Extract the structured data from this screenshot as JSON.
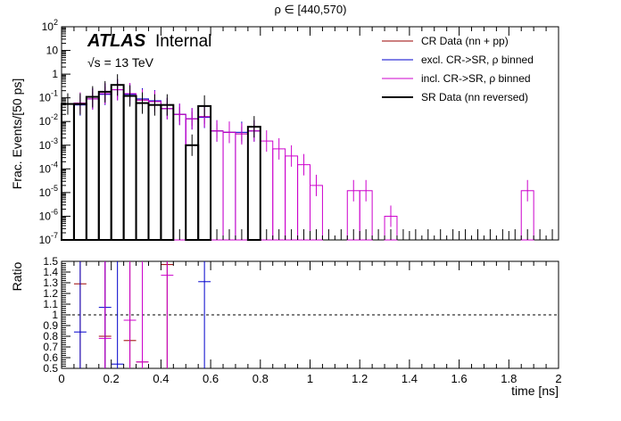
{
  "chart_data": [
    {
      "type": "line",
      "title": "ρ ∈ [440,570)",
      "ylabel": "Frac. Events/[50 ps]",
      "yscale": "log",
      "ylim": [
        1e-07,
        100
      ],
      "xlim": [
        0,
        2
      ],
      "y_ticks": [
        "10^-7",
        "10^-6",
        "10^-5",
        "10^-4",
        "10^-3",
        "10^-2",
        "10^-1",
        "1",
        "10",
        "10^2"
      ],
      "atlas_label": "ATLAS",
      "atlas_suffix": "Internal",
      "energy_label": "√s = 13 TeV",
      "legend_position": "top-right",
      "series": [
        {
          "name": "CR Data (nn + pp)",
          "color": "#990000",
          "style": "errorbars",
          "x": [
            0.075,
            0.125,
            0.175,
            0.225,
            0.275,
            0.325,
            0.375,
            0.425,
            0.475,
            0.525,
            0.575,
            0.625,
            0.675,
            0.725,
            0.775
          ],
          "values": [
            0.06,
            0.09,
            0.15,
            0.22,
            0.15,
            0.08,
            0.07,
            0.035,
            0.02,
            0.013,
            0.016,
            0.004,
            0.0035,
            0.003,
            0.004
          ]
        },
        {
          "name": "excl. CR->SR, ρ binned",
          "color": "#0000cc",
          "style": "histogram",
          "x": [
            0.075,
            0.125,
            0.175,
            0.225,
            0.275,
            0.325,
            0.375,
            0.425,
            0.475,
            0.525,
            0.575,
            0.625,
            0.675,
            0.725,
            0.775
          ],
          "values": [
            0.05,
            0.09,
            0.14,
            0.22,
            0.14,
            0.09,
            0.075,
            0.035,
            0.02,
            0.013,
            0.015,
            0.004,
            0.0035,
            0.0035,
            0.004
          ]
        },
        {
          "name": "incl. CR->SR, ρ binned",
          "color": "#cc00cc",
          "style": "histogram",
          "x": [
            0.075,
            0.125,
            0.175,
            0.225,
            0.275,
            0.325,
            0.375,
            0.425,
            0.475,
            0.525,
            0.575,
            0.625,
            0.675,
            0.725,
            0.775,
            0.825,
            0.875,
            0.925,
            0.975,
            1.025,
            1.175,
            1.225,
            1.325,
            1.875
          ],
          "values": [
            0.06,
            0.09,
            0.15,
            0.22,
            0.15,
            0.08,
            0.07,
            0.035,
            0.02,
            0.013,
            0.016,
            0.004,
            0.0035,
            0.003,
            0.004,
            0.0015,
            0.0007,
            0.00035,
            0.00015,
            2e-05,
            1.2e-05,
            1.2e-05,
            1e-06,
            1.2e-05
          ]
        },
        {
          "name": "SR Data (nn reversed)",
          "color": "#000000",
          "style": "histogram",
          "x": [
            0.025,
            0.075,
            0.125,
            0.175,
            0.225,
            0.275,
            0.325,
            0.375,
            0.425,
            0.475,
            0.525,
            0.575,
            0.625,
            0.675,
            0.725,
            0.775,
            0.825,
            0.875,
            0.925,
            0.975,
            1.025,
            1.075,
            1.125,
            1.175,
            1.225,
            1.275,
            1.325,
            1.375,
            1.425,
            1.475,
            1.525,
            1.575,
            1.625,
            1.675,
            1.725,
            1.775,
            1.825,
            1.875,
            1.925,
            1.975
          ],
          "values": [
            0.055,
            0.055,
            0.11,
            0.18,
            0.35,
            0.12,
            0.06,
            0.05,
            0.05,
            0,
            0.001,
            0.045,
            0,
            0,
            0,
            0.006,
            0,
            0,
            0,
            0,
            0,
            0,
            0,
            0,
            0,
            0,
            0,
            0,
            0,
            0,
            0,
            0,
            0,
            0,
            0,
            0,
            0,
            0,
            0,
            0
          ]
        }
      ]
    },
    {
      "type": "scatter",
      "ylabel": "Ratio",
      "xlabel": "time [ns]",
      "xlim": [
        0,
        2
      ],
      "ylim": [
        0.5,
        1.5
      ],
      "x_ticks": [
        "0",
        "0.2",
        "0.4",
        "0.6",
        "0.8",
        "1",
        "1.2",
        "1.4",
        "1.6",
        "1.8",
        "2"
      ],
      "y_ticks": [
        "0.5",
        "0.6",
        "0.7",
        "0.8",
        "0.9",
        "1",
        "1.1",
        "1.2",
        "1.3",
        "1.4",
        "1.5"
      ],
      "reference_line": 1.0,
      "series": [
        {
          "name": "CR Data (nn + pp)",
          "color": "#990000",
          "x": [
            0.075,
            0.175,
            0.275,
            0.325,
            0.425
          ],
          "values": [
            1.29,
            0.8,
            0.76,
            0.56,
            1.47
          ]
        },
        {
          "name": "excl. CR->SR, ρ binned",
          "color": "#0000cc",
          "x": [
            0.075,
            0.175,
            0.225,
            0.575
          ],
          "values": [
            0.84,
            1.07,
            0.54,
            1.31
          ]
        },
        {
          "name": "incl. CR->SR, ρ binned",
          "color": "#cc00cc",
          "x": [
            0.175,
            0.275,
            0.325,
            0.425
          ],
          "values": [
            0.78,
            0.95,
            0.56,
            1.37
          ]
        }
      ]
    }
  ]
}
